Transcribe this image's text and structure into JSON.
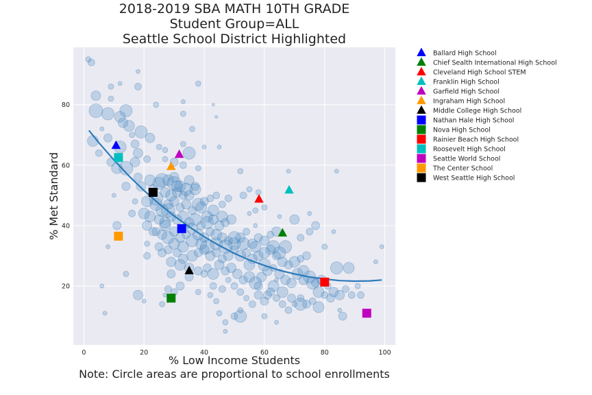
{
  "chart_data": {
    "type": "scatter",
    "title_lines": [
      "2018-2019 SBA MATH 10TH GRADE",
      "Student Group=ALL",
      "Seattle School District Highlighted"
    ],
    "xlabel": "% Low Income Students",
    "note": "Note: Circle areas are proportional to school enrollments",
    "ylabel": "% Met Standard",
    "xlim": [
      -3.5,
      103.5
    ],
    "ylim": [
      0.5,
      99
    ],
    "xticks": [
      0,
      20,
      40,
      60,
      80,
      100
    ],
    "yticks": [
      20,
      40,
      60,
      80
    ],
    "grid": true,
    "legend_position": "outside-right",
    "colors": {
      "background": "#eaeaf2",
      "grid": "#ffffff",
      "bubble_fill": "#4c8dc6",
      "bubble_stroke": "#2f70ab",
      "fit_line": "#2b7bba"
    },
    "fit_line": {
      "x": [
        1.7,
        5,
        10,
        15,
        20,
        25,
        30,
        35,
        40,
        45,
        50,
        55,
        60,
        65,
        70,
        75,
        80,
        85,
        90,
        95,
        99
      ],
      "y": [
        71.5,
        67.4,
        61.7,
        56.4,
        51.6,
        47.2,
        43.2,
        39.6,
        36.3,
        33.4,
        30.8,
        28.6,
        26.8,
        25.2,
        24.0,
        23.0,
        22.3,
        21.8,
        21.6,
        21.7,
        22.0
      ]
    },
    "background_schools": [
      [
        1.5,
        95,
        4
      ],
      [
        2.5,
        94,
        5
      ],
      [
        9,
        86,
        4
      ],
      [
        18,
        91,
        3
      ],
      [
        18,
        86,
        5
      ],
      [
        38,
        87,
        4
      ],
      [
        43,
        80,
        2
      ],
      [
        4,
        78,
        10
      ],
      [
        8,
        77,
        9
      ],
      [
        14,
        78,
        9
      ],
      [
        4,
        83,
        7
      ],
      [
        9,
        82,
        4
      ],
      [
        24,
        80,
        4
      ],
      [
        33,
        81,
        3
      ],
      [
        33,
        77,
        4
      ],
      [
        44,
        76,
        2
      ],
      [
        12,
        76,
        8
      ],
      [
        15,
        73,
        8
      ],
      [
        19,
        71,
        9
      ],
      [
        13,
        74,
        7
      ],
      [
        22,
        69,
        7
      ],
      [
        3,
        68,
        8
      ],
      [
        8,
        69,
        6
      ],
      [
        17,
        67,
        6
      ],
      [
        5,
        64,
        5
      ],
      [
        12,
        66,
        9
      ],
      [
        18,
        64,
        7
      ],
      [
        25,
        66,
        4
      ],
      [
        27,
        65,
        4
      ],
      [
        35,
        64,
        9
      ],
      [
        33,
        67,
        4
      ],
      [
        9,
        61,
        6
      ],
      [
        11,
        59,
        8
      ],
      [
        14,
        59,
        10
      ],
      [
        17,
        61,
        7
      ],
      [
        21,
        62,
        5
      ],
      [
        27,
        62,
        4
      ],
      [
        30,
        61,
        6
      ],
      [
        33,
        60,
        5
      ],
      [
        38,
        59,
        4
      ],
      [
        18,
        56,
        6
      ],
      [
        22,
        55,
        8
      ],
      [
        25,
        54,
        9
      ],
      [
        28,
        55,
        8
      ],
      [
        30,
        56,
        7
      ],
      [
        32,
        53,
        8
      ],
      [
        35,
        55,
        7
      ],
      [
        37,
        53,
        6
      ],
      [
        19,
        53,
        7
      ],
      [
        23,
        52,
        7
      ],
      [
        27,
        51,
        7
      ],
      [
        29,
        50,
        8
      ],
      [
        31,
        51,
        7
      ],
      [
        33,
        50,
        6
      ],
      [
        35,
        50,
        7
      ],
      [
        14,
        53,
        6
      ],
      [
        17,
        48,
        4
      ],
      [
        21,
        48,
        8
      ],
      [
        24,
        47,
        9
      ],
      [
        26,
        45,
        9
      ],
      [
        28,
        47,
        7
      ],
      [
        30,
        48,
        7
      ],
      [
        32,
        46,
        6
      ],
      [
        34,
        47,
        7
      ],
      [
        36,
        45,
        6
      ],
      [
        38,
        47,
        9
      ],
      [
        40,
        48,
        6
      ],
      [
        42,
        49,
        5
      ],
      [
        44,
        50,
        5
      ],
      [
        46,
        47,
        5
      ],
      [
        48,
        49,
        5
      ],
      [
        52,
        58,
        4
      ],
      [
        53,
        50,
        5
      ],
      [
        55,
        52,
        4
      ],
      [
        58,
        51,
        4
      ],
      [
        22,
        43,
        8
      ],
      [
        25,
        42,
        7
      ],
      [
        27,
        41,
        8
      ],
      [
        29,
        43,
        7
      ],
      [
        31,
        42,
        7
      ],
      [
        33,
        43,
        8
      ],
      [
        35,
        41,
        7
      ],
      [
        37,
        42,
        9
      ],
      [
        39,
        40,
        6
      ],
      [
        41,
        41,
        9
      ],
      [
        43,
        42,
        7
      ],
      [
        45,
        40,
        7
      ],
      [
        47,
        41,
        6
      ],
      [
        49,
        42,
        7
      ],
      [
        21,
        40,
        7
      ],
      [
        24,
        38,
        6
      ],
      [
        26,
        37,
        7
      ],
      [
        28,
        36,
        9
      ],
      [
        30,
        38,
        7
      ],
      [
        32,
        36,
        7
      ],
      [
        34,
        37,
        6
      ],
      [
        36,
        35,
        9
      ],
      [
        38,
        37,
        8
      ],
      [
        40,
        36,
        7
      ],
      [
        42,
        38,
        6
      ],
      [
        44,
        37,
        8
      ],
      [
        46,
        36,
        7
      ],
      [
        48,
        35,
        6
      ],
      [
        50,
        34,
        9
      ],
      [
        52,
        36,
        7
      ],
      [
        54,
        38,
        5
      ],
      [
        56,
        34,
        7
      ],
      [
        58,
        36,
        6
      ],
      [
        60,
        35,
        7
      ],
      [
        62,
        37,
        5
      ],
      [
        64,
        38,
        7
      ],
      [
        67,
        33,
        9
      ],
      [
        70,
        42,
        7
      ],
      [
        72,
        36,
        5
      ],
      [
        75,
        38,
        5
      ],
      [
        77,
        40,
        6
      ],
      [
        25,
        33,
        6
      ],
      [
        28,
        32,
        6
      ],
      [
        31,
        31,
        6
      ],
      [
        33,
        29,
        7
      ],
      [
        36,
        30,
        8
      ],
      [
        38,
        31,
        6
      ],
      [
        40,
        32,
        7
      ],
      [
        42,
        30,
        7
      ],
      [
        44,
        31,
        6
      ],
      [
        46,
        29,
        6
      ],
      [
        48,
        30,
        7
      ],
      [
        50,
        32,
        6
      ],
      [
        52,
        30,
        8
      ],
      [
        54,
        31,
        6
      ],
      [
        56,
        29,
        7
      ],
      [
        58,
        30,
        7
      ],
      [
        60,
        31,
        8
      ],
      [
        62,
        32,
        7
      ],
      [
        64,
        30,
        6
      ],
      [
        66,
        28,
        7
      ],
      [
        68,
        27,
        6
      ],
      [
        70,
        28,
        8
      ],
      [
        72,
        29,
        5
      ],
      [
        74,
        30,
        6
      ],
      [
        21,
        30,
        5
      ],
      [
        29,
        28,
        7
      ],
      [
        32,
        27,
        8
      ],
      [
        35,
        26,
        7
      ],
      [
        38,
        25,
        6
      ],
      [
        41,
        26,
        6
      ],
      [
        43,
        24,
        8
      ],
      [
        45,
        27,
        7
      ],
      [
        47,
        25,
        6
      ],
      [
        49,
        26,
        7
      ],
      [
        51,
        24,
        7
      ],
      [
        53,
        22,
        6
      ],
      [
        55,
        23,
        8
      ],
      [
        57,
        21,
        9
      ],
      [
        59,
        23,
        7
      ],
      [
        61,
        25,
        7
      ],
      [
        63,
        26,
        5
      ],
      [
        65,
        24,
        7
      ],
      [
        67,
        22,
        7
      ],
      [
        69,
        21,
        7
      ],
      [
        71,
        24,
        8
      ],
      [
        73,
        22,
        7
      ],
      [
        75,
        23,
        9
      ],
      [
        77,
        21,
        6
      ],
      [
        79,
        22,
        7
      ],
      [
        81,
        20,
        5
      ],
      [
        83,
        18,
        7
      ],
      [
        85,
        17,
        7
      ],
      [
        87,
        19,
        5
      ],
      [
        89,
        17,
        5
      ],
      [
        91,
        20,
        4
      ],
      [
        84,
        26,
        9
      ],
      [
        11,
        40,
        6
      ],
      [
        21,
        34,
        4
      ],
      [
        28,
        19,
        5
      ],
      [
        30,
        18,
        5
      ],
      [
        32,
        20,
        6
      ],
      [
        38,
        18,
        4
      ],
      [
        42,
        17,
        4
      ],
      [
        44,
        15,
        4
      ],
      [
        48,
        22,
        4
      ],
      [
        50,
        20,
        5
      ],
      [
        52,
        18,
        5
      ],
      [
        54,
        16,
        4
      ],
      [
        56,
        14,
        5
      ],
      [
        58,
        17,
        6
      ],
      [
        60,
        15,
        6
      ],
      [
        62,
        18,
        6
      ],
      [
        64,
        16,
        5
      ],
      [
        66,
        14,
        5
      ],
      [
        68,
        12,
        5
      ],
      [
        70,
        14,
        4
      ],
      [
        72,
        16,
        5
      ],
      [
        74,
        14,
        6
      ],
      [
        76,
        15,
        5
      ],
      [
        78,
        13,
        8
      ],
      [
        80,
        17,
        5
      ],
      [
        82,
        16,
        6
      ],
      [
        86,
        10,
        6
      ],
      [
        45,
        11,
        4
      ],
      [
        47,
        8,
        4
      ],
      [
        50,
        10,
        5
      ],
      [
        52,
        12,
        4
      ],
      [
        47,
        5,
        3
      ],
      [
        64,
        8,
        3
      ],
      [
        60,
        10,
        4
      ],
      [
        6,
        20,
        3
      ],
      [
        7,
        11,
        3
      ],
      [
        8,
        33,
        3
      ],
      [
        14,
        24,
        4
      ],
      [
        18,
        17,
        7
      ],
      [
        20,
        15,
        3
      ],
      [
        26,
        14,
        4
      ],
      [
        27,
        17,
        3
      ],
      [
        99,
        33,
        3
      ],
      [
        97,
        28,
        3
      ],
      [
        84,
        58,
        3
      ],
      [
        68,
        58,
        3
      ],
      [
        40,
        66,
        3
      ],
      [
        57,
        45,
        4
      ],
      [
        60,
        46,
        4
      ],
      [
        75,
        44,
        3
      ],
      [
        26,
        55,
        10
      ],
      [
        30,
        54,
        10
      ],
      [
        34,
        52,
        9
      ],
      [
        24,
        49,
        10
      ],
      [
        28,
        45,
        10
      ],
      [
        41,
        33,
        10
      ],
      [
        44,
        34,
        9
      ],
      [
        47,
        33,
        10
      ],
      [
        50,
        36,
        9
      ],
      [
        53,
        34,
        9
      ],
      [
        60,
        27,
        9
      ],
      [
        63,
        33,
        9
      ],
      [
        65,
        31,
        9
      ],
      [
        52,
        10,
        9
      ],
      [
        72,
        14,
        9
      ],
      [
        76,
        21,
        9
      ],
      [
        88,
        26,
        8
      ],
      [
        31,
        53,
        8
      ],
      [
        37,
        52,
        8
      ],
      [
        39,
        46,
        8
      ],
      [
        41,
        43,
        8
      ],
      [
        43,
        45,
        8
      ],
      [
        46,
        43,
        8
      ],
      [
        20,
        44,
        8
      ],
      [
        27,
        40,
        8
      ],
      [
        30,
        34,
        8
      ],
      [
        33,
        33,
        8
      ],
      [
        36,
        39,
        8
      ],
      [
        39,
        34,
        8
      ],
      [
        55,
        27,
        8
      ],
      [
        57,
        33,
        8
      ],
      [
        63,
        20,
        8
      ],
      [
        66,
        18,
        8
      ],
      [
        73,
        25,
        8
      ],
      [
        78,
        18,
        8
      ],
      [
        16,
        44,
        5
      ],
      [
        6,
        72,
        3
      ],
      [
        16,
        70,
        4
      ],
      [
        10,
        50,
        3
      ],
      [
        55,
        44,
        3
      ],
      [
        57,
        40,
        3
      ],
      [
        65,
        43,
        3
      ],
      [
        80,
        33,
        4
      ],
      [
        83,
        38,
        3
      ],
      [
        12,
        87,
        3
      ],
      [
        36,
        72,
        4
      ],
      [
        45,
        66,
        3
      ],
      [
        64,
        22,
        3
      ],
      [
        85,
        12,
        3
      ],
      [
        92,
        17,
        5
      ],
      [
        34,
        40,
        5
      ],
      [
        35,
        23,
        6
      ],
      [
        40,
        24,
        5
      ],
      [
        43,
        20,
        5
      ],
      [
        46,
        19,
        5
      ],
      [
        23,
        38,
        6
      ],
      [
        26,
        31,
        6
      ],
      [
        29,
        24,
        6
      ],
      [
        58,
        20,
        6
      ],
      [
        61,
        17,
        6
      ],
      [
        69,
        16,
        6
      ]
    ],
    "highlighted_schools": [
      {
        "name": "Ballard High School",
        "x": 10.7,
        "y": 66.5,
        "marker": "triangle",
        "color": "#0000ff"
      },
      {
        "name": "Chief Sealth International High School",
        "x": 66.0,
        "y": 37.5,
        "marker": "triangle",
        "color": "#008000"
      },
      {
        "name": "Cleveland High School STEM",
        "x": 58.2,
        "y": 48.7,
        "marker": "triangle",
        "color": "#ff0000"
      },
      {
        "name": "Franklin High School",
        "x": 68.2,
        "y": 51.7,
        "marker": "triangle",
        "color": "#00bfbf"
      },
      {
        "name": "Garfield High School",
        "x": 31.7,
        "y": 63.5,
        "marker": "triangle",
        "color": "#bf00bf"
      },
      {
        "name": "Ingraham High School",
        "x": 29.0,
        "y": 59.5,
        "marker": "triangle",
        "color": "#ff9900"
      },
      {
        "name": "Middle College High School",
        "x": 35.0,
        "y": 25.0,
        "marker": "triangle",
        "color": "#000000"
      },
      {
        "name": "Nathan Hale High School",
        "x": 32.5,
        "y": 39.0,
        "marker": "square",
        "color": "#0000ff"
      },
      {
        "name": "Nova High School",
        "x": 29.0,
        "y": 16.0,
        "marker": "square",
        "color": "#008000"
      },
      {
        "name": "Rainier Beach High School",
        "x": 80.0,
        "y": 21.3,
        "marker": "square",
        "color": "#ff0000"
      },
      {
        "name": "Roosevelt High School",
        "x": 11.5,
        "y": 62.5,
        "marker": "square",
        "color": "#00bfbf"
      },
      {
        "name": "Seattle World School",
        "x": 94.0,
        "y": 11.0,
        "marker": "square",
        "color": "#bf00bf"
      },
      {
        "name": "The Center School",
        "x": 11.5,
        "y": 36.5,
        "marker": "square",
        "color": "#ff9900"
      },
      {
        "name": "West Seattle High School",
        "x": 23.0,
        "y": 51.0,
        "marker": "square",
        "color": "#000000"
      }
    ]
  }
}
